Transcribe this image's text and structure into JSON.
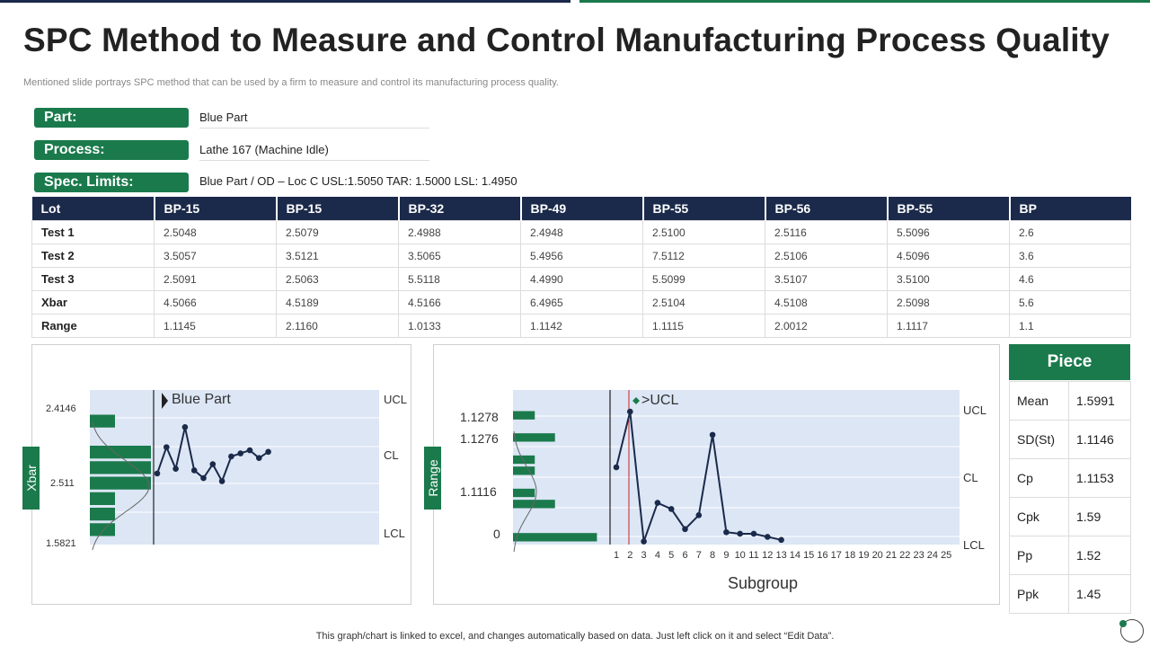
{
  "header": {
    "title": "SPC Method to Measure and Control Manufacturing Process Quality",
    "subtitle": "Mentioned slide portrays SPC method that can be used by a firm to measure and control its manufacturing process quality."
  },
  "info": {
    "part_label": "Part:",
    "part_value": "Blue Part",
    "process_label": "Process:",
    "process_value": "Lathe 167 (Machine Idle)",
    "spec_label": "Spec. Limits:",
    "spec_value": "Blue Part / OD – Loc C USL:1.5050  TAR:  1.5000  LSL:  1.4950"
  },
  "lot_table": {
    "columns": [
      "Lot",
      "BP-15",
      "BP-15",
      "BP-32",
      "BP-49",
      "BP-55",
      "BP-56",
      "BP-55",
      "BP"
    ],
    "rows": [
      {
        "label": "Test 1",
        "values": [
          "2.5048",
          "2.5079",
          "2.4988",
          "2.4948",
          "2.5100",
          "2.5116",
          "5.5096",
          "2.6"
        ]
      },
      {
        "label": "Test 2",
        "values": [
          "3.5057",
          "3.5121",
          "3.5065",
          "5.4956",
          "7.5112",
          "2.5106",
          "4.5096",
          "3.6"
        ]
      },
      {
        "label": "Test 3",
        "values": [
          "2.5091",
          "2.5063",
          "5.5118",
          "4.4990",
          "5.5099",
          "3.5107",
          "3.5100",
          "4.6"
        ]
      },
      {
        "label": "Xbar",
        "values": [
          "4.5066",
          "4.5189",
          "4.5166",
          "6.4965",
          "2.5104",
          "4.5108",
          "2.5098",
          "5.6"
        ]
      },
      {
        "label": "Range",
        "values": [
          "1.1145",
          "2.1160",
          "1.0133",
          "1.1142",
          "1.1115",
          "2.0012",
          "1.1117",
          "1.1"
        ]
      }
    ]
  },
  "chart_data": [
    {
      "type": "line",
      "ylabel": "Xbar",
      "annotation": "Blue Part",
      "y_ticks": [
        "2.4146",
        "2.511",
        "1.5821"
      ],
      "limit_labels": [
        "UCL",
        "CL",
        "LCL"
      ],
      "values": [
        0.46,
        0.63,
        0.49,
        0.76,
        0.48,
        0.43,
        0.52,
        0.41,
        0.57,
        0.59,
        0.61,
        0.56,
        0.6
      ],
      "histogram": [
        0.14,
        0,
        0.34,
        0.34,
        0.34,
        0.14,
        0.14,
        0.14
      ],
      "colors": {
        "line": "#1b2a4a",
        "bars": "#1a7a4c",
        "plot_bg": "#dce6f5"
      }
    },
    {
      "type": "line",
      "ylabel": "Range",
      "xlabel": "Subgroup",
      "annotation": ">UCL",
      "y_ticks": [
        "1.1278",
        "1.1276",
        "1.1116",
        "0"
      ],
      "limit_labels": [
        "UCL",
        "CL",
        "LCL"
      ],
      "x_ticks": [
        "1",
        "2",
        "3",
        "4",
        "5",
        "6",
        "7",
        "8",
        "9",
        "10",
        "11",
        "12",
        "13",
        "14",
        "15",
        "16",
        "17",
        "18",
        "19",
        "20",
        "21",
        "22",
        "23",
        "24",
        "25"
      ],
      "values": [
        0.5,
        0.86,
        0.02,
        0.27,
        0.23,
        0.1,
        0.19,
        0.71,
        0.08,
        0.07,
        0.07,
        0.05,
        0.03
      ],
      "histogram": [
        0.14,
        0,
        0.27,
        0,
        0.14,
        0.14,
        0,
        0.14,
        0.27,
        0,
        0,
        0.54
      ],
      "colors": {
        "line": "#1b2a4a",
        "bars": "#1a7a4c",
        "plot_bg": "#dce6f5",
        "ucl_marker": "#cc2222"
      }
    }
  ],
  "piece": {
    "title": "Piece",
    "rows": [
      {
        "label": "Mean",
        "value": "1.5991"
      },
      {
        "label": "SD(St)",
        "value": "1.1146"
      },
      {
        "label": "Cp",
        "value": "1.1153"
      },
      {
        "label": "Cpk",
        "value": "1.59"
      },
      {
        "label": "Pp",
        "value": "1.52"
      },
      {
        "label": "Ppk",
        "value": "1.45"
      }
    ]
  },
  "footer": {
    "note": "This graph/chart is linked to excel,  and changes automatically based on data. Just left click on it and select “Edit Data”."
  }
}
